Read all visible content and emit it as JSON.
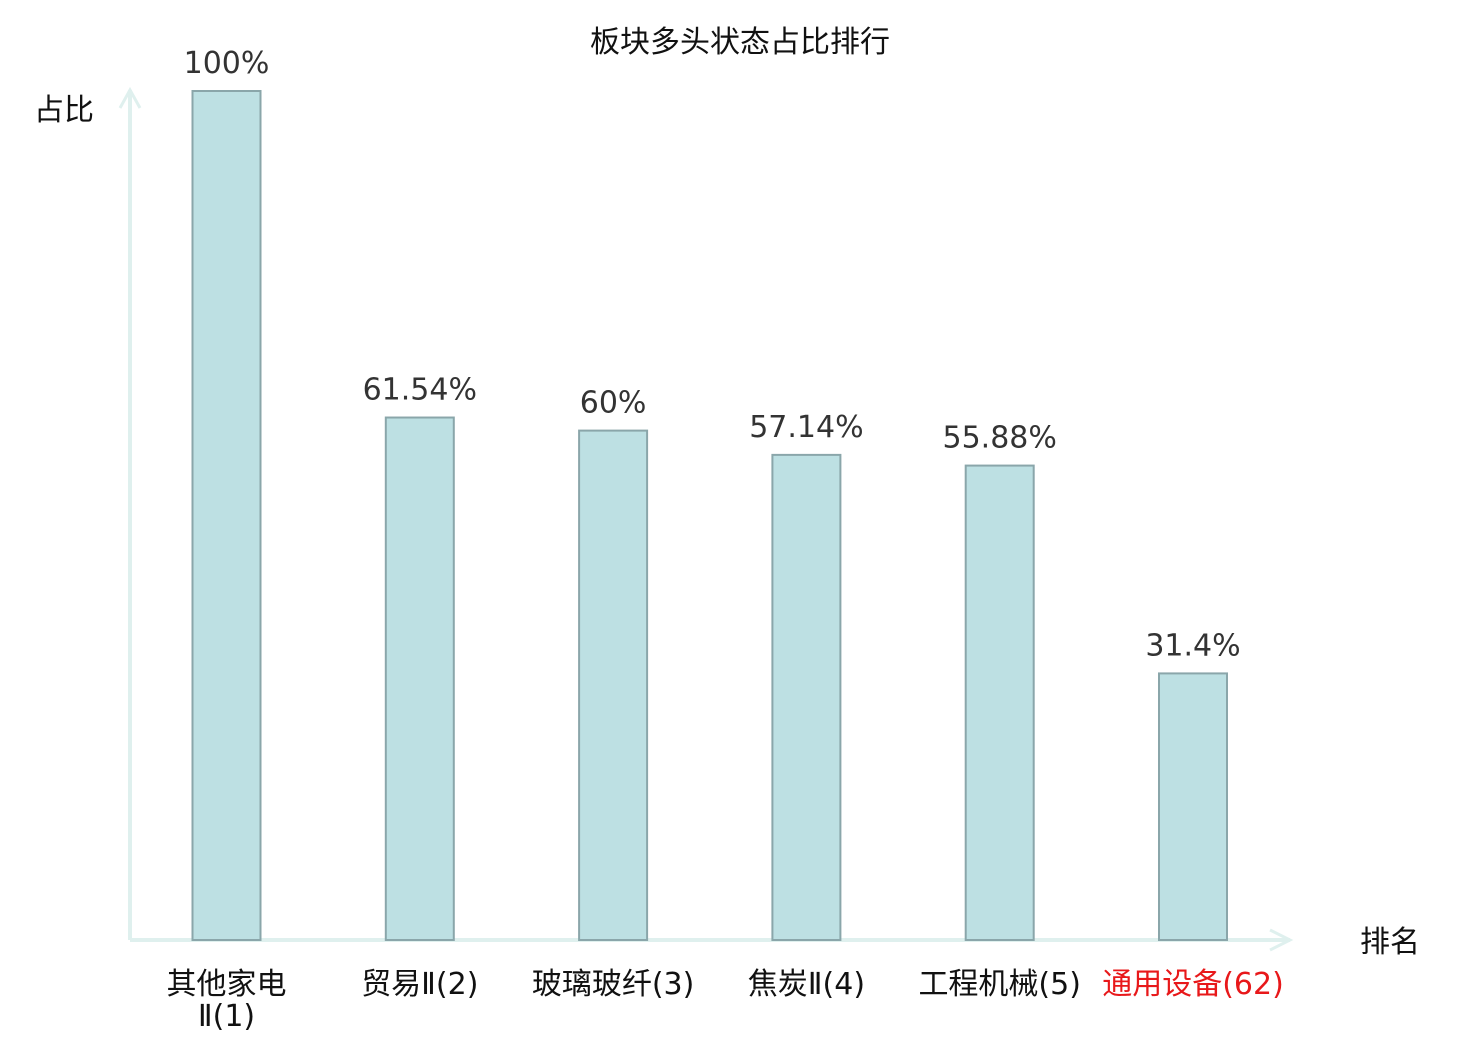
{
  "chart_data": {
    "type": "bar",
    "title": "板块多头状态占比排行",
    "ylabel": "占比",
    "xlabel": "排名",
    "ylim": [
      0,
      100
    ],
    "grid": false,
    "categories": [
      {
        "name": "其他家电Ⅱ",
        "rank": "(1)",
        "line1": "其他家电",
        "line2": "Ⅱ(1)",
        "highlight": false
      },
      {
        "name": "贸易Ⅱ",
        "rank": "(2)",
        "line1": "贸易Ⅱ(2)",
        "line2": "",
        "highlight": false
      },
      {
        "name": "玻璃玻纤",
        "rank": "(3)",
        "line1": "玻璃玻纤(3)",
        "line2": "",
        "highlight": false
      },
      {
        "name": "焦炭Ⅱ",
        "rank": "(4)",
        "line1": "焦炭Ⅱ(4)",
        "line2": "",
        "highlight": false
      },
      {
        "name": "工程机械",
        "rank": "(5)",
        "line1": "工程机械(5)",
        "line2": "",
        "highlight": false
      },
      {
        "name": "通用设备",
        "rank": "(62)",
        "line1": "通用设备(62)",
        "line2": "",
        "highlight": true
      }
    ],
    "values": [
      100,
      61.54,
      60,
      57.14,
      55.88,
      31.4
    ],
    "value_labels": [
      "100%",
      "61.54%",
      "60%",
      "57.14%",
      "55.88%",
      "31.4%"
    ],
    "colors": {
      "bar_fill": "#bde0e3",
      "bar_stroke": "#8aa6aa",
      "axis": "#dff0ee",
      "text": "#111111",
      "value_text": "#333333",
      "highlight_text": "#e8181a"
    }
  }
}
